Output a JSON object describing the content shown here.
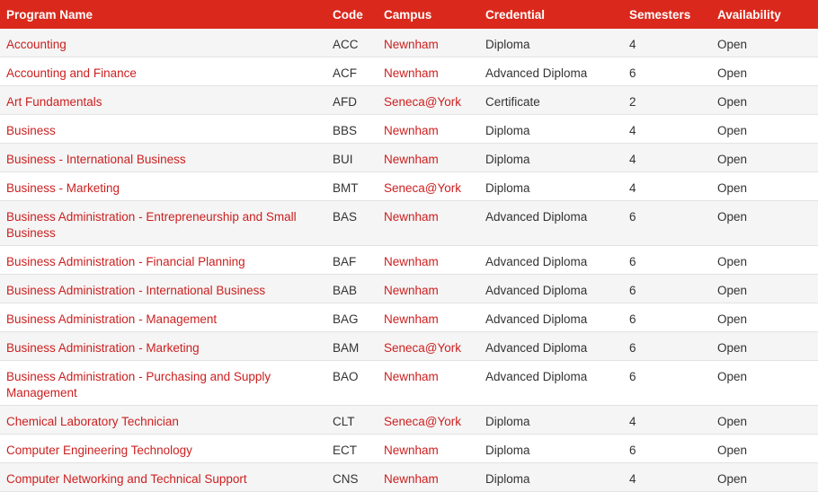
{
  "table": {
    "header": [
      "Program Name",
      "Code",
      "Campus",
      "Credential",
      "Semesters",
      "Availability"
    ],
    "rows": [
      [
        "Accounting",
        "ACC",
        "Newnham",
        "Diploma",
        4,
        "Open"
      ],
      [
        "Accounting and Finance",
        "ACF",
        "Newnham",
        "Advanced Diploma",
        6,
        "Open"
      ],
      [
        "Art Fundamentals",
        "AFD",
        "Seneca@York",
        "Certificate",
        2,
        "Open"
      ],
      [
        "Business",
        "BBS",
        "Newnham",
        "Diploma",
        4,
        "Open"
      ],
      [
        "Business - International Business",
        "BUI",
        "Newnham",
        "Diploma",
        4,
        "Open"
      ],
      [
        "Business - Marketing",
        "BMT",
        "Seneca@York",
        "Diploma",
        4,
        "Open"
      ],
      [
        "Business Administration - Entrepreneurship and Small Business",
        "BAS",
        "Newnham",
        "Advanced Diploma",
        6,
        "Open"
      ],
      [
        "Business Administration - Financial Planning",
        "BAF",
        "Newnham",
        "Advanced Diploma",
        6,
        "Open"
      ],
      [
        "Business Administration - International Business",
        "BAB",
        "Newnham",
        "Advanced Diploma",
        6,
        "Open"
      ],
      [
        "Business Administration - Management",
        "BAG",
        "Newnham",
        "Advanced Diploma",
        6,
        "Open"
      ],
      [
        "Business Administration - Marketing",
        "BAM",
        "Seneca@York",
        "Advanced Diploma",
        6,
        "Open"
      ],
      [
        "Business Administration - Purchasing and Supply Management",
        "BAO",
        "Newnham",
        "Advanced Diploma",
        6,
        "Open"
      ],
      [
        "Chemical Laboratory Technician",
        "CLT",
        "Seneca@York",
        "Diploma",
        4,
        "Open"
      ],
      [
        "Computer Engineering Technology",
        "ECT",
        "Newnham",
        "Diploma",
        6,
        "Open"
      ],
      [
        "Computer Networking and Technical Support",
        "CNS",
        "Newnham",
        "Diploma",
        4,
        "Open"
      ]
    ]
  }
}
